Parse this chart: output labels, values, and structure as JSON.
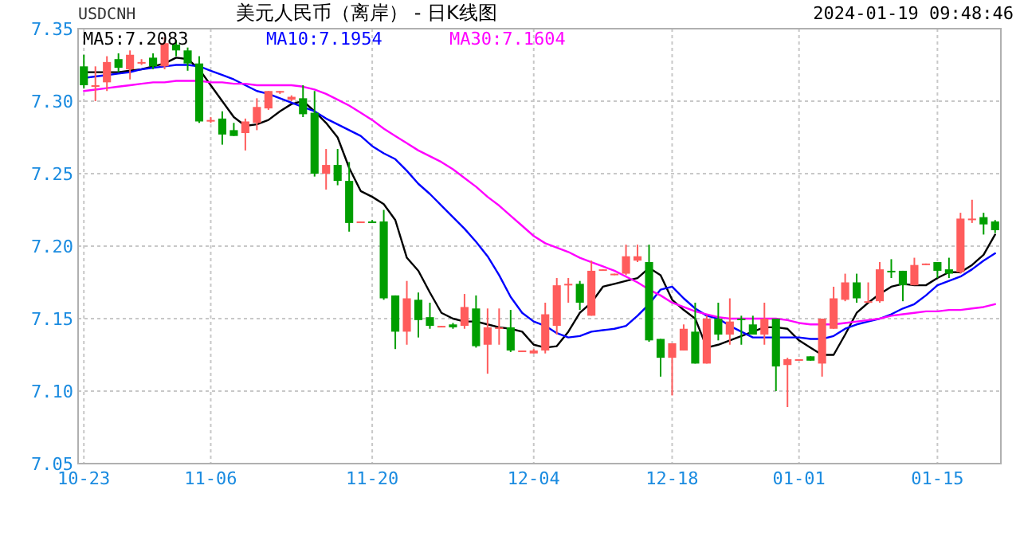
{
  "chart_data": {
    "type": "candlestick",
    "title": "美元人民币（离岸） - 日K线图",
    "annotations": [
      "USDCNH",
      "2024-01-19 09:48:46"
    ],
    "categories": [
      "10-23",
      null,
      null,
      null,
      null,
      null,
      null,
      null,
      null,
      null,
      null,
      "11-06",
      null,
      null,
      null,
      null,
      null,
      null,
      null,
      null,
      null,
      null,
      null,
      null,
      null,
      "11-20",
      null,
      null,
      null,
      null,
      null,
      null,
      null,
      null,
      null,
      null,
      null,
      null,
      null,
      "12-04",
      null,
      null,
      null,
      null,
      null,
      null,
      null,
      null,
      null,
      null,
      null,
      "12-18",
      null,
      null,
      null,
      null,
      null,
      null,
      null,
      null,
      null,
      null,
      "01-01",
      null,
      null,
      null,
      null,
      null,
      null,
      null,
      null,
      null,
      null,
      null,
      "01-15",
      null,
      null,
      null,
      null,
      null
    ],
    "ohlc": [
      [
        7.324,
        7.332,
        7.309,
        7.311
      ],
      [
        7.31,
        7.324,
        7.3,
        7.311
      ],
      [
        7.313,
        7.331,
        7.307,
        7.327
      ],
      [
        7.329,
        7.333,
        7.32,
        7.323
      ],
      [
        7.322,
        7.335,
        7.315,
        7.332
      ],
      [
        7.326,
        7.329,
        7.325,
        7.327
      ],
      [
        7.33,
        7.333,
        7.322,
        7.324
      ],
      [
        7.324,
        7.344,
        7.322,
        7.34
      ],
      [
        7.339,
        7.342,
        7.331,
        7.335
      ],
      [
        7.335,
        7.337,
        7.321,
        7.326
      ],
      [
        7.326,
        7.331,
        7.285,
        7.286
      ],
      [
        7.286,
        7.289,
        7.285,
        7.287
      ],
      [
        7.288,
        7.293,
        7.27,
        7.277
      ],
      [
        7.28,
        7.285,
        7.276,
        7.276
      ],
      [
        7.278,
        7.288,
        7.266,
        7.286
      ],
      [
        7.285,
        7.302,
        7.28,
        7.296
      ],
      [
        7.295,
        7.307,
        7.294,
        7.307
      ],
      [
        7.306,
        7.307,
        7.305,
        7.307
      ],
      [
        7.301,
        7.304,
        7.3,
        7.303
      ],
      [
        7.302,
        7.311,
        7.289,
        7.291
      ],
      [
        7.292,
        7.307,
        7.248,
        7.25
      ],
      [
        7.25,
        7.267,
        7.239,
        7.256
      ],
      [
        7.256,
        7.267,
        7.242,
        7.245
      ],
      [
        7.245,
        7.258,
        7.21,
        7.216
      ],
      [
        7.216,
        7.217,
        7.216,
        7.217
      ],
      [
        7.217,
        7.218,
        7.216,
        7.217
      ],
      [
        7.217,
        7.225,
        7.163,
        7.164
      ],
      [
        7.166,
        7.166,
        7.129,
        7.141
      ],
      [
        7.141,
        7.176,
        7.132,
        7.164
      ],
      [
        7.163,
        7.168,
        7.137,
        7.149
      ],
      [
        7.151,
        7.161,
        7.143,
        7.145
      ],
      [
        7.144,
        7.145,
        7.144,
        7.145
      ],
      [
        7.146,
        7.147,
        7.143,
        7.144
      ],
      [
        7.145,
        7.167,
        7.143,
        7.158
      ],
      [
        7.157,
        7.166,
        7.13,
        7.131
      ],
      [
        7.132,
        7.157,
        7.112,
        7.144
      ],
      [
        7.143,
        7.157,
        7.132,
        7.144
      ],
      [
        7.144,
        7.156,
        7.127,
        7.128
      ],
      [
        7.127,
        7.128,
        7.127,
        7.128
      ],
      [
        7.126,
        7.129,
        7.126,
        7.128
      ],
      [
        7.128,
        7.161,
        7.126,
        7.153
      ],
      [
        7.145,
        7.178,
        7.139,
        7.173
      ],
      [
        7.173,
        7.178,
        7.161,
        7.174
      ],
      [
        7.174,
        7.176,
        7.156,
        7.161
      ],
      [
        7.152,
        7.19,
        7.152,
        7.183
      ],
      [
        7.183,
        7.184,
        7.183,
        7.184
      ],
      [
        7.18,
        7.181,
        7.18,
        7.181
      ],
      [
        7.181,
        7.201,
        7.18,
        7.193
      ],
      [
        7.19,
        7.201,
        7.189,
        7.193
      ],
      [
        7.189,
        7.201,
        7.134,
        7.135
      ],
      [
        7.136,
        7.136,
        7.11,
        7.123
      ],
      [
        7.123,
        7.133,
        7.097,
        7.133
      ],
      [
        7.128,
        7.146,
        7.128,
        7.143
      ],
      [
        7.141,
        7.161,
        7.119,
        7.119
      ],
      [
        7.119,
        7.152,
        7.119,
        7.15
      ],
      [
        7.15,
        7.161,
        7.135,
        7.139
      ],
      [
        7.139,
        7.164,
        7.132,
        7.148
      ],
      [
        7.15,
        7.152,
        7.132,
        7.15
      ],
      [
        7.146,
        7.152,
        7.139,
        7.139
      ],
      [
        7.139,
        7.161,
        7.132,
        7.15
      ],
      [
        7.15,
        7.15,
        7.1,
        7.117
      ],
      [
        7.118,
        7.123,
        7.089,
        7.122
      ],
      [
        7.121,
        7.122,
        7.121,
        7.122
      ],
      [
        7.124,
        7.124,
        7.121,
        7.121
      ],
      [
        7.119,
        7.15,
        7.11,
        7.15
      ],
      [
        7.143,
        7.172,
        7.143,
        7.164
      ],
      [
        7.163,
        7.181,
        7.162,
        7.175
      ],
      [
        7.175,
        7.181,
        7.161,
        7.164
      ],
      [
        7.161,
        7.175,
        7.161,
        7.162
      ],
      [
        7.162,
        7.189,
        7.161,
        7.184
      ],
      [
        7.183,
        7.191,
        7.178,
        7.183
      ],
      [
        7.183,
        7.183,
        7.162,
        7.173
      ],
      [
        7.173,
        7.192,
        7.173,
        7.187
      ],
      [
        7.187,
        7.188,
        7.187,
        7.188
      ],
      [
        7.189,
        7.189,
        7.178,
        7.183
      ],
      [
        7.184,
        7.192,
        7.178,
        7.181
      ],
      [
        7.182,
        7.223,
        7.181,
        7.219
      ],
      [
        7.219,
        7.232,
        7.216,
        7.219
      ],
      [
        7.22,
        7.223,
        7.208,
        7.215
      ],
      [
        7.217,
        7.218,
        7.209,
        7.211
      ]
    ],
    "colors": [
      "#009e00",
      "#ff5c5c",
      "#ff5c5c",
      "#009e00",
      "#ff5c5c",
      "#ff5c5c",
      "#009e00",
      "#ff5c5c",
      "#009e00",
      "#009e00",
      "#009e00",
      "#ff5c5c",
      "#009e00",
      "#009e00",
      "#ff5c5c",
      "#ff5c5c",
      "#ff5c5c",
      "#ff5c5c",
      "#ff5c5c",
      "#009e00",
      "#009e00",
      "#ff5c5c",
      "#009e00",
      "#009e00",
      "#ff5c5c",
      "#009e00",
      "#009e00",
      "#009e00",
      "#ff5c5c",
      "#009e00",
      "#009e00",
      "#ff5c5c",
      "#009e00",
      "#ff5c5c",
      "#009e00",
      "#ff5c5c",
      "#ff5c5c",
      "#009e00",
      "#ff5c5c",
      "#ff5c5c",
      "#ff5c5c",
      "#ff5c5c",
      "#ff5c5c",
      "#009e00",
      "#ff5c5c",
      "#ff5c5c",
      "#ff5c5c",
      "#ff5c5c",
      "#ff5c5c",
      "#009e00",
      "#009e00",
      "#ff5c5c",
      "#ff5c5c",
      "#009e00",
      "#ff5c5c",
      "#009e00",
      "#ff5c5c",
      "#009e00",
      "#009e00",
      "#ff5c5c",
      "#009e00",
      "#ff5c5c",
      "#ff5c5c",
      "#009e00",
      "#ff5c5c",
      "#ff5c5c",
      "#ff5c5c",
      "#009e00",
      "#ff5c5c",
      "#ff5c5c",
      "#009e00",
      "#009e00",
      "#ff5c5c",
      "#ff5c5c",
      "#009e00",
      "#009e00",
      "#ff5c5c",
      "#ff5c5c",
      "#009e00",
      "#009e00"
    ],
    "series": [
      {
        "name": "MA5:7.2083",
        "type": "line",
        "color": "#000000",
        "values": [
          7.32,
          7.32,
          7.32,
          7.32,
          7.321,
          7.322,
          7.324,
          7.326,
          7.33,
          7.329,
          7.322,
          7.311,
          7.3,
          7.289,
          7.283,
          7.284,
          7.287,
          7.293,
          7.298,
          7.3,
          7.293,
          7.285,
          7.275,
          7.254,
          7.238,
          7.234,
          7.229,
          7.218,
          7.192,
          7.183,
          7.168,
          7.154,
          7.15,
          7.148,
          7.148,
          7.146,
          7.144,
          7.143,
          7.141,
          7.132,
          7.13,
          7.131,
          7.141,
          7.154,
          7.161,
          7.172,
          7.174,
          7.176,
          7.178,
          7.185,
          7.18,
          7.163,
          7.156,
          7.15,
          7.13,
          7.132,
          7.135,
          7.138,
          7.141,
          7.144,
          7.144,
          7.143,
          7.135,
          7.13,
          7.125,
          7.125,
          7.139,
          7.154,
          7.161,
          7.167,
          7.172,
          7.174,
          7.173,
          7.173,
          7.178,
          7.182,
          7.182,
          7.187,
          7.194,
          7.208
        ]
      },
      {
        "name": "MA10:7.1954",
        "type": "line",
        "color": "#0000ff",
        "values": [
          7.316,
          7.317,
          7.318,
          7.319,
          7.32,
          7.322,
          7.323,
          7.324,
          7.325,
          7.325,
          7.324,
          7.321,
          7.318,
          7.315,
          7.311,
          7.307,
          7.305,
          7.302,
          7.299,
          7.296,
          7.293,
          7.288,
          7.284,
          7.28,
          7.276,
          7.269,
          7.264,
          7.26,
          7.252,
          7.243,
          7.236,
          7.228,
          7.22,
          7.212,
          7.203,
          7.193,
          7.18,
          7.165,
          7.154,
          7.148,
          7.145,
          7.14,
          7.137,
          7.138,
          7.141,
          7.142,
          7.143,
          7.145,
          7.152,
          7.16,
          7.17,
          7.172,
          7.164,
          7.157,
          7.152,
          7.15,
          7.145,
          7.141,
          7.137,
          7.137,
          7.137,
          7.137,
          7.137,
          7.136,
          7.136,
          7.138,
          7.143,
          7.146,
          7.148,
          7.15,
          7.153,
          7.157,
          7.16,
          7.166,
          7.173,
          7.176,
          7.179,
          7.184,
          7.19,
          7.195
        ]
      },
      {
        "name": "MA30:7.1604",
        "type": "line",
        "color": "#ff00ff",
        "values": [
          7.307,
          7.308,
          7.309,
          7.31,
          7.311,
          7.312,
          7.313,
          7.313,
          7.314,
          7.314,
          7.314,
          7.313,
          7.313,
          7.312,
          7.312,
          7.311,
          7.311,
          7.311,
          7.311,
          7.31,
          7.308,
          7.305,
          7.301,
          7.297,
          7.292,
          7.287,
          7.281,
          7.276,
          7.271,
          7.266,
          7.262,
          7.258,
          7.253,
          7.247,
          7.241,
          7.234,
          7.228,
          7.221,
          7.214,
          7.207,
          7.202,
          7.199,
          7.196,
          7.192,
          7.189,
          7.186,
          7.183,
          7.179,
          7.175,
          7.17,
          7.166,
          7.161,
          7.158,
          7.155,
          7.153,
          7.151,
          7.15,
          7.15,
          7.15,
          7.15,
          7.15,
          7.149,
          7.147,
          7.146,
          7.146,
          7.146,
          7.147,
          7.148,
          7.149,
          7.15,
          7.152,
          7.153,
          7.154,
          7.155,
          7.155,
          7.156,
          7.156,
          7.157,
          7.158,
          7.16
        ]
      }
    ],
    "ylim": [
      7.05,
      7.35
    ],
    "yticks": [
      {
        "value": 7.05,
        "label": "7.05"
      },
      {
        "value": 7.1,
        "label": "7.10"
      },
      {
        "value": 7.15,
        "label": "7.15"
      },
      {
        "value": 7.2,
        "label": "7.20"
      },
      {
        "value": 7.25,
        "label": "7.25"
      },
      {
        "value": 7.3,
        "label": "7.30"
      },
      {
        "value": 7.35,
        "label": "7.35"
      }
    ],
    "grid": true,
    "legend": "top left"
  }
}
